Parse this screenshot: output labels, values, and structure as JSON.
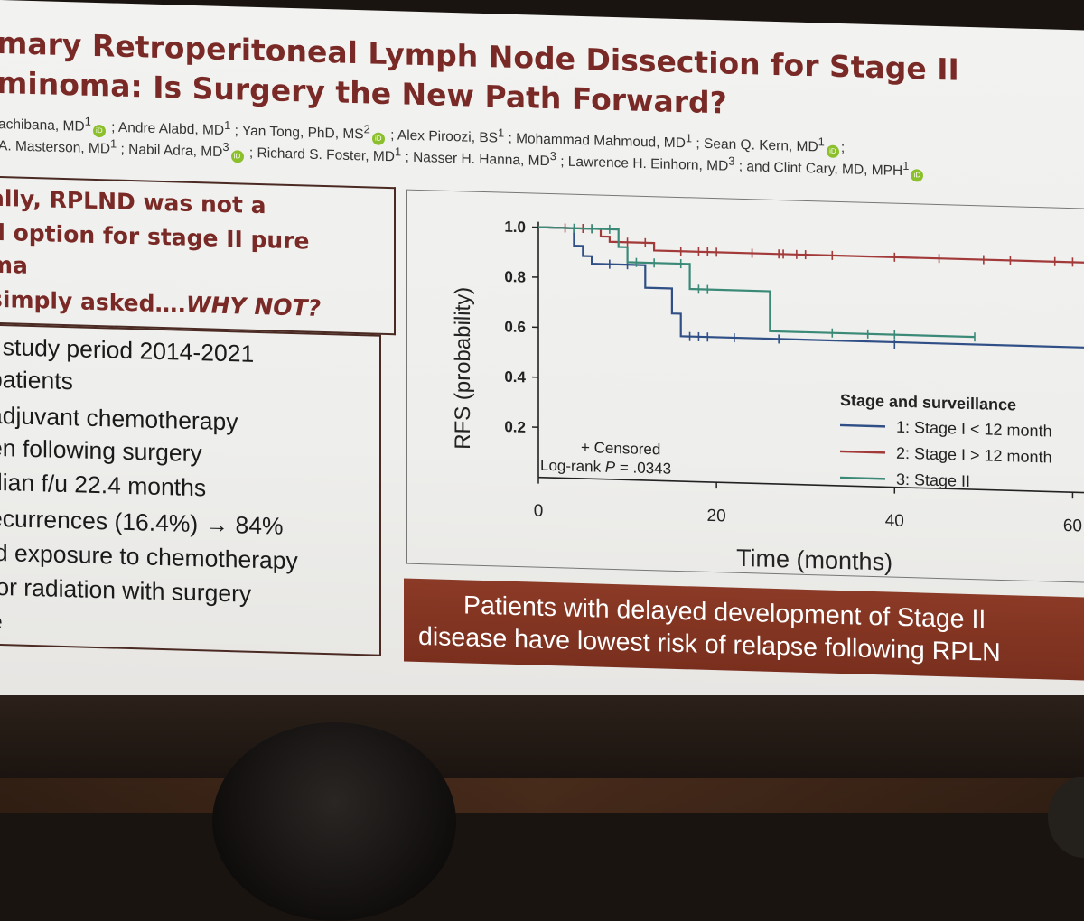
{
  "title": {
    "line1": "mary Retroperitoneal Lymph Node Dissection for Stage II",
    "line2": "minoma: Is Surgery the New Path Forward?"
  },
  "authors": {
    "line1": [
      "achibana, MD",
      "; Andre Alabd, MD",
      "; Yan Tong, PhD, MS",
      "; Alex Piroozi, BS",
      "; Mohammad Mahmoud, MD",
      "; Sean Q. Kern, MD",
      ";"
    ],
    "line2": [
      "A. Masterson, MD",
      "; Nabil Adra, MD",
      "; Richard S. Foster, MD",
      "; Nasser H. Hanna, MD",
      "; Lawrence H. Einhorn, MD",
      "; and Clint Cary, MD, MPH"
    ],
    "sup": {
      "one": "1",
      "two": "2",
      "three": "3"
    }
  },
  "left_top": {
    "line1": "ally, RPLND was not a",
    "line2": "d option for stage II pure",
    "line3": "ma",
    "line4_prefix": "simply asked….",
    "line4_emph": "WHY NOT?"
  },
  "left_bullets": [
    "t study period 2014-2021",
    "patients",
    " adjuvant chemotherapy",
    "en following surgery",
    "dian f/u 22.4 months",
    "ecurrences (16.4%) → 84%",
    "id exposure to chemotherapy",
    "/or radiation with surgery",
    "e"
  ],
  "chart_data": {
    "type": "line",
    "xlabel": "Time (months)",
    "ylabel": "RFS (probability)",
    "xlim": [
      0,
      63
    ],
    "ylim": [
      0,
      1.0
    ],
    "x_ticks": [
      0,
      20,
      40,
      60
    ],
    "y_ticks": [
      1.0,
      0.8,
      0.6,
      0.4,
      0.2
    ],
    "y_tick_labels": [
      "1.0",
      "0.8",
      "0.6",
      "0.4",
      "0.2"
    ],
    "legend_title": "Stage and surveillance",
    "legend_placement": "bottom-right",
    "annotation_censored": "+ Censored",
    "annotation_logrank_prefix": "Log-rank ",
    "annotation_logrank_p": "P",
    "annotation_logrank_value": " = .0343",
    "series": [
      {
        "name": "1: Stage I < 12 month",
        "color": "#2f4f86",
        "steps": [
          [
            0,
            1.0
          ],
          [
            4,
            1.0
          ],
          [
            4,
            0.93
          ],
          [
            5,
            0.93
          ],
          [
            5,
            0.89
          ],
          [
            6,
            0.89
          ],
          [
            6,
            0.86
          ],
          [
            12,
            0.86
          ],
          [
            12,
            0.77
          ],
          [
            15,
            0.77
          ],
          [
            15,
            0.67
          ],
          [
            16,
            0.67
          ],
          [
            16,
            0.58
          ],
          [
            65,
            0.58
          ],
          [
            65,
            0.56
          ]
        ],
        "censored": [
          [
            8,
            0.86
          ],
          [
            10,
            0.86
          ],
          [
            17,
            0.58
          ],
          [
            18,
            0.58
          ],
          [
            19,
            0.58
          ],
          [
            22,
            0.58
          ],
          [
            27,
            0.58
          ],
          [
            40,
            0.57
          ],
          [
            65,
            0.56
          ]
        ]
      },
      {
        "name": "2: Stage I > 12 month",
        "color": "#a33a3a",
        "steps": [
          [
            0,
            1.0
          ],
          [
            7,
            1.0
          ],
          [
            7,
            0.97
          ],
          [
            8,
            0.97
          ],
          [
            8,
            0.95
          ],
          [
            13,
            0.95
          ],
          [
            13,
            0.92
          ],
          [
            65,
            0.92
          ]
        ],
        "censored": [
          [
            3,
            1.0
          ],
          [
            5,
            1.0
          ],
          [
            6,
            1.0
          ],
          [
            10,
            0.95
          ],
          [
            12,
            0.95
          ],
          [
            16,
            0.92
          ],
          [
            18,
            0.92
          ],
          [
            19,
            0.92
          ],
          [
            20,
            0.92
          ],
          [
            24,
            0.92
          ],
          [
            27,
            0.92
          ],
          [
            27.5,
            0.92
          ],
          [
            29,
            0.92
          ],
          [
            30,
            0.92
          ],
          [
            33,
            0.92
          ],
          [
            40,
            0.92
          ],
          [
            45,
            0.92
          ],
          [
            50,
            0.92
          ],
          [
            53,
            0.92
          ],
          [
            58,
            0.92
          ],
          [
            60,
            0.92
          ]
        ]
      },
      {
        "name": "3: Stage II",
        "color": "#3b8a78",
        "steps": [
          [
            0,
            1.0
          ],
          [
            9,
            1.0
          ],
          [
            9,
            0.93
          ],
          [
            10,
            0.93
          ],
          [
            10,
            0.87
          ],
          [
            17,
            0.87
          ],
          [
            17,
            0.77
          ],
          [
            26,
            0.77
          ],
          [
            26,
            0.61
          ],
          [
            49,
            0.61
          ]
        ],
        "censored": [
          [
            4,
            1.0
          ],
          [
            6,
            1.0
          ],
          [
            8,
            1.0
          ],
          [
            11,
            0.87
          ],
          [
            13,
            0.87
          ],
          [
            16,
            0.87
          ],
          [
            18,
            0.77
          ],
          [
            19,
            0.77
          ],
          [
            33,
            0.61
          ],
          [
            37,
            0.61
          ],
          [
            40,
            0.61
          ],
          [
            49,
            0.61
          ]
        ]
      }
    ]
  },
  "banner": {
    "line1": "Patients with delayed development of Stage II",
    "line2": "disease have lowest risk of relapse following RPLN"
  }
}
